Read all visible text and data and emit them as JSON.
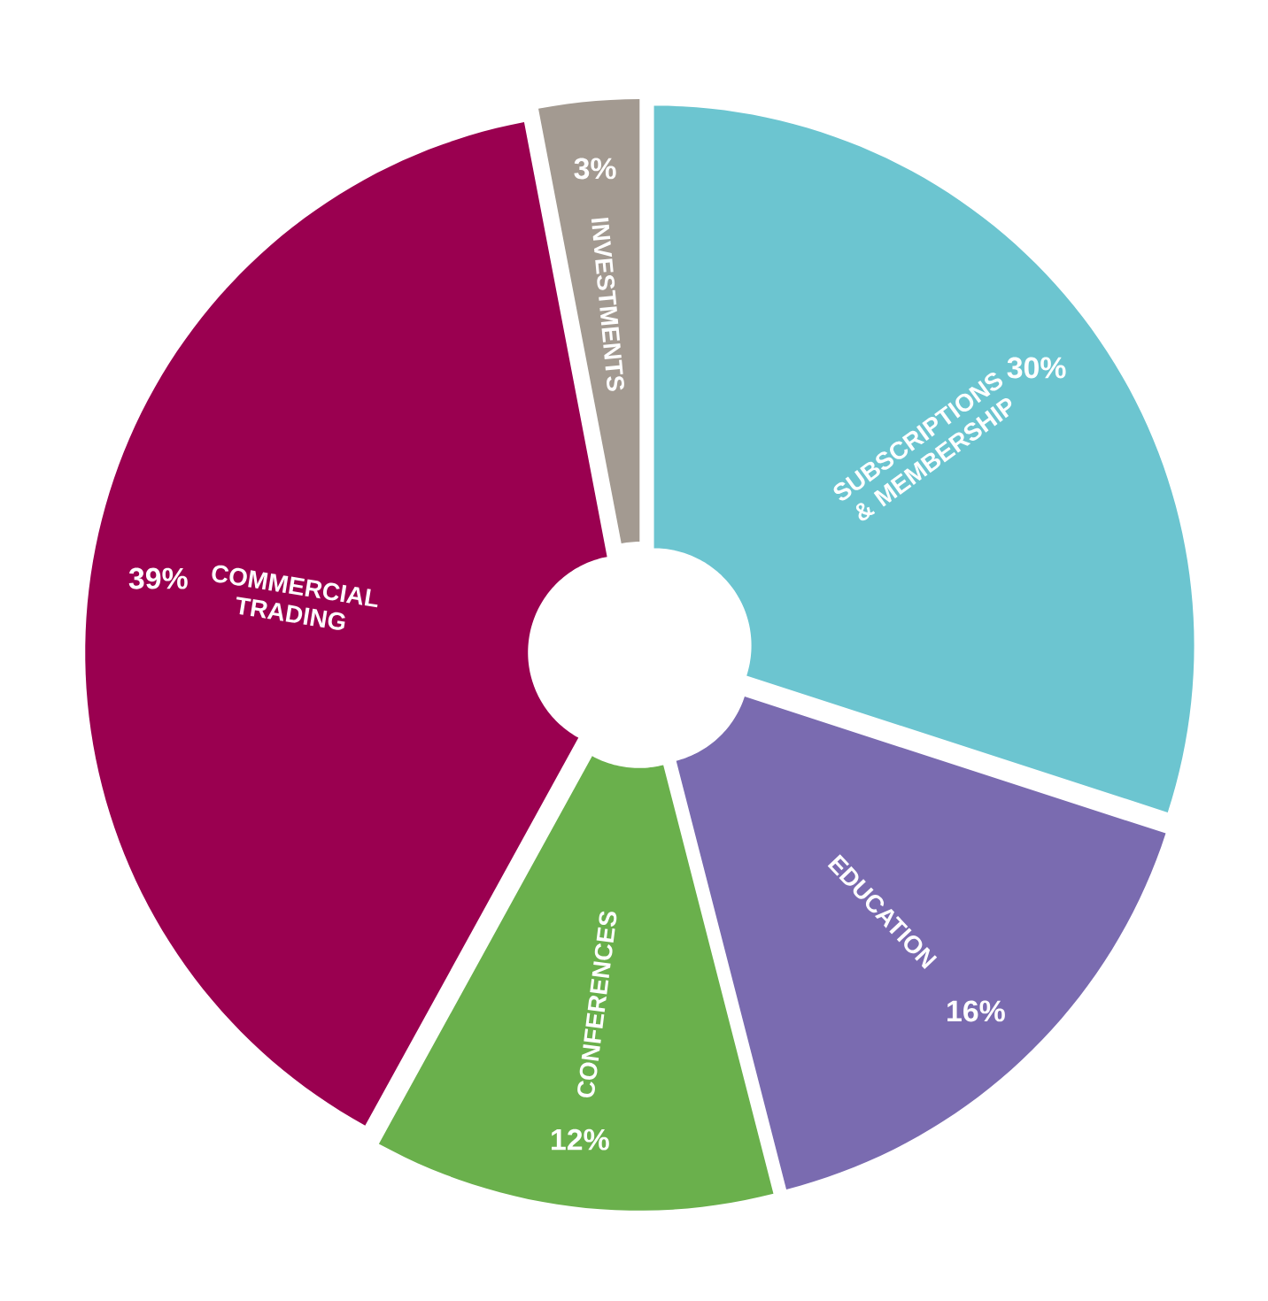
{
  "chart_data": {
    "type": "donut",
    "categories": [
      "SUBSCRIPTIONS & MEMBERSHIP",
      "EDUCATION",
      "CONFERENCES",
      "COMMERCIAL TRADING",
      "INVESTMENTS"
    ],
    "values": [
      30,
      16,
      12,
      39,
      3
    ],
    "value_labels": [
      "30%",
      "16%",
      "12%",
      "39%",
      "3%"
    ],
    "colors": [
      "#6cc5d0",
      "#7a6bb0",
      "#6ab04c",
      "#9a0050",
      "#a39a91"
    ]
  }
}
